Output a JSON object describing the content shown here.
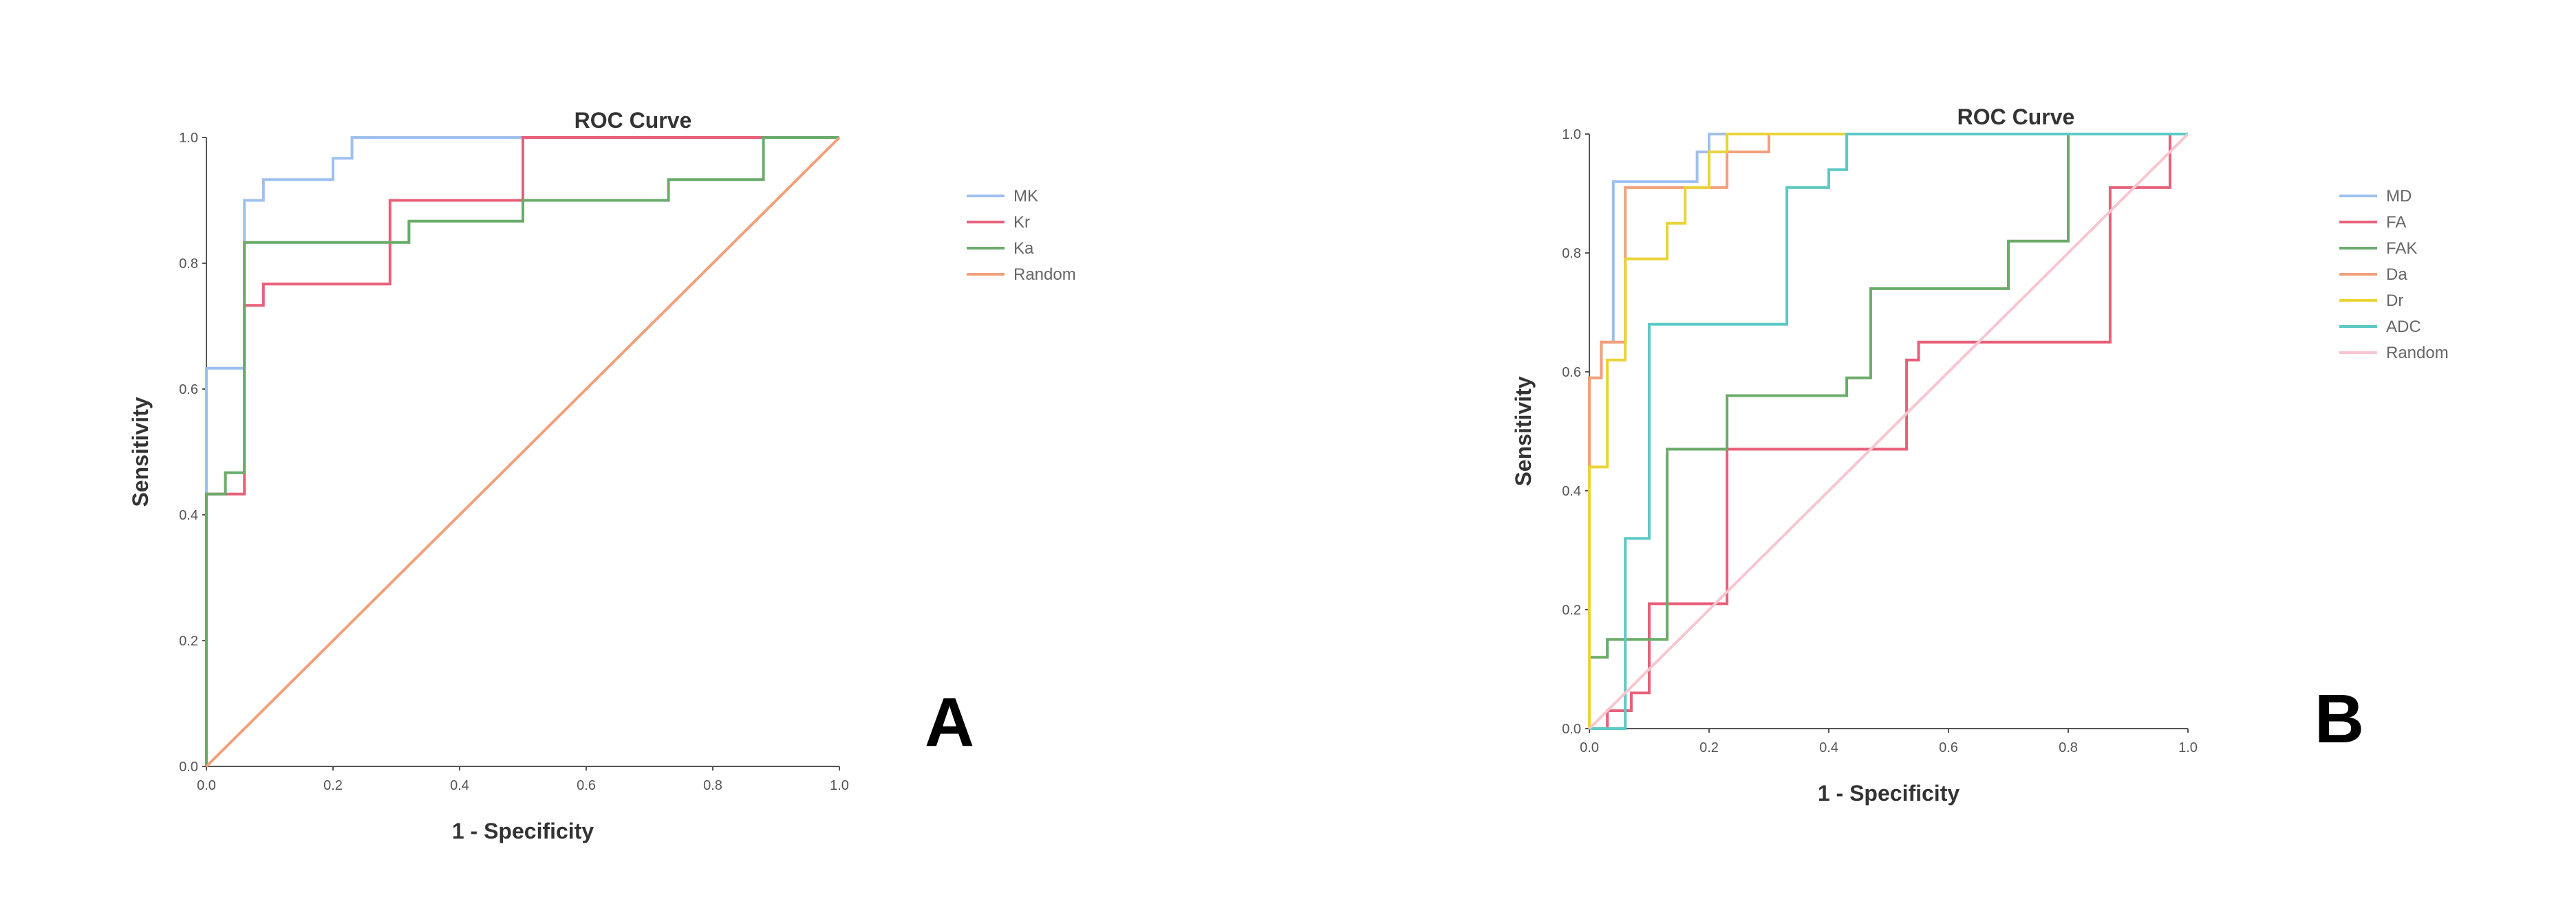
{
  "chart_data": [
    {
      "type": "line",
      "title": "ROC Curve",
      "xlabel": "1 - Specificity",
      "ylabel": "Sensitivity",
      "xlim": [
        0,
        1
      ],
      "ylim": [
        0,
        1
      ],
      "xticks": [
        "0.0",
        "0.2",
        "0.4",
        "0.6",
        "0.8",
        "1.0"
      ],
      "yticks": [
        "0.0",
        "0.2",
        "0.4",
        "0.6",
        "0.8",
        "1.0"
      ],
      "panel_label": "A",
      "legend_position": "right",
      "series": [
        {
          "name": "MK",
          "color": "#9fc0ee",
          "points": [
            [
              0,
              0
            ],
            [
              0,
              0.433
            ],
            [
              0,
              0.633
            ],
            [
              0.06,
              0.633
            ],
            [
              0.06,
              0.9
            ],
            [
              0.09,
              0.9
            ],
            [
              0.09,
              0.933
            ],
            [
              0.2,
              0.933
            ],
            [
              0.2,
              0.967
            ],
            [
              0.23,
              0.967
            ],
            [
              0.23,
              1
            ],
            [
              1,
              1
            ]
          ]
        },
        {
          "name": "Kr",
          "color": "#e8607a",
          "points": [
            [
              0,
              0
            ],
            [
              0,
              0.433
            ],
            [
              0.06,
              0.433
            ],
            [
              0.06,
              0.733
            ],
            [
              0.09,
              0.733
            ],
            [
              0.09,
              0.767
            ],
            [
              0.29,
              0.767
            ],
            [
              0.29,
              0.9
            ],
            [
              0.5,
              0.9
            ],
            [
              0.5,
              1
            ],
            [
              1,
              1
            ]
          ]
        },
        {
          "name": "Ka",
          "color": "#6aab6a",
          "points": [
            [
              0,
              0
            ],
            [
              0,
              0.433
            ],
            [
              0.03,
              0.433
            ],
            [
              0.03,
              0.467
            ],
            [
              0.06,
              0.467
            ],
            [
              0.06,
              0.833
            ],
            [
              0.32,
              0.833
            ],
            [
              0.32,
              0.867
            ],
            [
              0.5,
              0.867
            ],
            [
              0.5,
              0.9
            ],
            [
              0.73,
              0.9
            ],
            [
              0.73,
              0.933
            ],
            [
              0.88,
              0.933
            ],
            [
              0.88,
              1
            ],
            [
              1,
              1
            ]
          ]
        },
        {
          "name": "Random",
          "color": "#f2a07a",
          "points": [
            [
              0,
              0
            ],
            [
              1,
              1
            ]
          ]
        }
      ]
    },
    {
      "type": "line",
      "title": "ROC Curve",
      "xlabel": "1 - Specificity",
      "ylabel": "Sensitivity",
      "xlim": [
        0,
        1
      ],
      "ylim": [
        0,
        1
      ],
      "xticks": [
        "0.0",
        "0.2",
        "0.4",
        "0.6",
        "0.8",
        "1.0"
      ],
      "yticks": [
        "0.0",
        "0.2",
        "0.4",
        "0.6",
        "0.8",
        "1.0"
      ],
      "panel_label": "B",
      "legend_position": "right",
      "series": [
        {
          "name": "MD",
          "color": "#9fc0ee",
          "points": [
            [
              0,
              0
            ],
            [
              0,
              0.59
            ],
            [
              0.02,
              0.59
            ],
            [
              0.02,
              0.65
            ],
            [
              0.04,
              0.65
            ],
            [
              0.04,
              0.92
            ],
            [
              0.18,
              0.92
            ],
            [
              0.18,
              0.97
            ],
            [
              0.2,
              0.97
            ],
            [
              0.2,
              1
            ],
            [
              1,
              1
            ]
          ]
        },
        {
          "name": "FA",
          "color": "#e8607a",
          "points": [
            [
              0,
              0
            ],
            [
              0.03,
              0
            ],
            [
              0.03,
              0.03
            ],
            [
              0.07,
              0.03
            ],
            [
              0.07,
              0.06
            ],
            [
              0.1,
              0.06
            ],
            [
              0.1,
              0.21
            ],
            [
              0.23,
              0.21
            ],
            [
              0.23,
              0.47
            ],
            [
              0.53,
              0.47
            ],
            [
              0.53,
              0.62
            ],
            [
              0.55,
              0.62
            ],
            [
              0.55,
              0.65
            ],
            [
              0.87,
              0.65
            ],
            [
              0.87,
              0.91
            ],
            [
              0.97,
              0.91
            ],
            [
              0.97,
              1
            ],
            [
              1,
              1
            ]
          ]
        },
        {
          "name": "FAK",
          "color": "#6aab6a",
          "points": [
            [
              0,
              0
            ],
            [
              0,
              0.12
            ],
            [
              0.03,
              0.12
            ],
            [
              0.03,
              0.15
            ],
            [
              0.13,
              0.15
            ],
            [
              0.13,
              0.47
            ],
            [
              0.23,
              0.47
            ],
            [
              0.23,
              0.56
            ],
            [
              0.43,
              0.56
            ],
            [
              0.43,
              0.59
            ],
            [
              0.47,
              0.59
            ],
            [
              0.47,
              0.74
            ],
            [
              0.7,
              0.74
            ],
            [
              0.7,
              0.82
            ],
            [
              0.8,
              0.82
            ],
            [
              0.8,
              1
            ],
            [
              1,
              1
            ]
          ]
        },
        {
          "name": "Da",
          "color": "#f2a07a",
          "points": [
            [
              0,
              0
            ],
            [
              0,
              0.59
            ],
            [
              0.02,
              0.59
            ],
            [
              0.02,
              0.65
            ],
            [
              0.06,
              0.65
            ],
            [
              0.06,
              0.91
            ],
            [
              0.23,
              0.91
            ],
            [
              0.23,
              0.97
            ],
            [
              0.3,
              0.97
            ],
            [
              0.3,
              1
            ],
            [
              1,
              1
            ]
          ]
        },
        {
          "name": "Dr",
          "color": "#e9d43a",
          "points": [
            [
              0,
              0
            ],
            [
              0,
              0.44
            ],
            [
              0.03,
              0.44
            ],
            [
              0.03,
              0.62
            ],
            [
              0.06,
              0.62
            ],
            [
              0.06,
              0.79
            ],
            [
              0.13,
              0.79
            ],
            [
              0.13,
              0.85
            ],
            [
              0.16,
              0.85
            ],
            [
              0.16,
              0.91
            ],
            [
              0.2,
              0.91
            ],
            [
              0.2,
              0.97
            ],
            [
              0.23,
              0.97
            ],
            [
              0.23,
              1
            ],
            [
              1,
              1
            ]
          ]
        },
        {
          "name": "ADC",
          "color": "#5cc9c4",
          "points": [
            [
              0,
              0
            ],
            [
              0.06,
              0
            ],
            [
              0.06,
              0.32
            ],
            [
              0.1,
              0.32
            ],
            [
              0.1,
              0.68
            ],
            [
              0.33,
              0.68
            ],
            [
              0.33,
              0.91
            ],
            [
              0.4,
              0.91
            ],
            [
              0.4,
              0.94
            ],
            [
              0.43,
              0.94
            ],
            [
              0.43,
              1
            ],
            [
              1,
              1
            ]
          ]
        },
        {
          "name": "Random",
          "color": "#f7c6d0",
          "points": [
            [
              0,
              0
            ],
            [
              1,
              1
            ]
          ]
        }
      ]
    }
  ]
}
